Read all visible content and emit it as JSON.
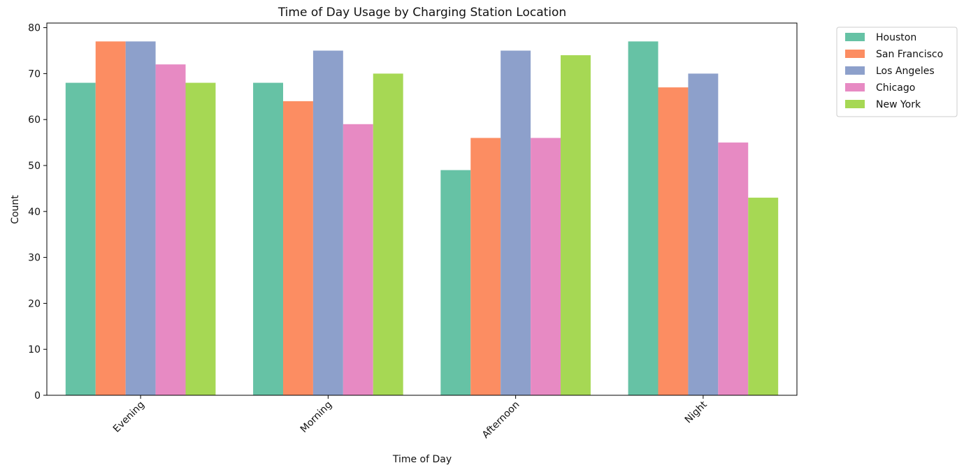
{
  "chart_data": {
    "type": "bar",
    "title": "Time of Day Usage by Charging Station Location",
    "xlabel": "Time of Day",
    "ylabel": "Count",
    "categories": [
      "Evening",
      "Morning",
      "Afternoon",
      "Night"
    ],
    "ylim": [
      0,
      81
    ],
    "yticks": [
      0,
      10,
      20,
      30,
      40,
      50,
      60,
      70,
      80
    ],
    "grid": false,
    "legend_position": "outside top-right",
    "series": [
      {
        "name": "Houston",
        "color": "#66c2a5",
        "values": [
          68,
          68,
          49,
          77
        ]
      },
      {
        "name": "San Francisco",
        "color": "#fc8d62",
        "values": [
          77,
          64,
          56,
          67
        ]
      },
      {
        "name": "Los Angeles",
        "color": "#8da0cb",
        "values": [
          77,
          75,
          75,
          70
        ]
      },
      {
        "name": "Chicago",
        "color": "#e78ac3",
        "values": [
          72,
          59,
          56,
          55
        ]
      },
      {
        "name": "New York",
        "color": "#a6d854",
        "values": [
          68,
          70,
          74,
          43
        ]
      }
    ]
  }
}
